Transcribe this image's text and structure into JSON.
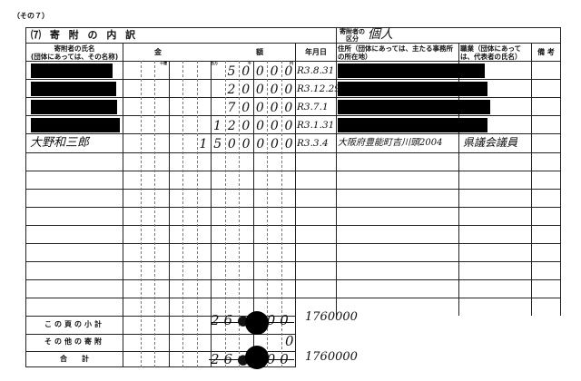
{
  "page_label": "（その７）",
  "section_title": "⑺ 寄 附 の 内 訳",
  "donor_category_label": "寄附者の区分",
  "donor_category_value": "個人",
  "headers": {
    "name": "寄附者の氏名\n(団体にあっては、その名称)",
    "amount_kin": "金",
    "amount_gaku": "額",
    "date": "年月日",
    "address": "住所（団体にあっては、主たる事務所の所在地）",
    "occupation": "職業（団体にあっては、代表者の氏名）",
    "remarks": "備 考"
  },
  "digit_units": {
    "ten_million": "十億",
    "million": "百万",
    "thousand": "千",
    "yen": "円"
  },
  "rows": [
    {
      "name": "",
      "amount": "50000",
      "date": "R3.8.31",
      "address": "",
      "occupation": "",
      "redacted": true
    },
    {
      "name": "",
      "amount": "20000",
      "date": "R3.12.29",
      "address": "",
      "occupation": "",
      "redacted": true
    },
    {
      "name": "",
      "amount": "70000",
      "date": "R3.7.1",
      "address": "",
      "occupation": "",
      "redacted": true
    },
    {
      "name": "",
      "amount": "120000",
      "date": "R3.1.31",
      "address": "",
      "occupation": "",
      "redacted": true
    },
    {
      "name": "大野和三郎",
      "amount": "1500000",
      "date": "R3.3.4",
      "address": "大阪府豊能町吉川頭2004",
      "occupation": "県議会議員",
      "redacted": false
    }
  ],
  "totals": {
    "page_subtotal_label": "この頁の小計",
    "page_subtotal_struck": "26●000",
    "page_subtotal_corrected": "1760000",
    "other_label": "その他の寄附",
    "other_value": "0",
    "total_label": "合　　計",
    "total_struck": "26●000",
    "total_corrected": "1760000"
  }
}
